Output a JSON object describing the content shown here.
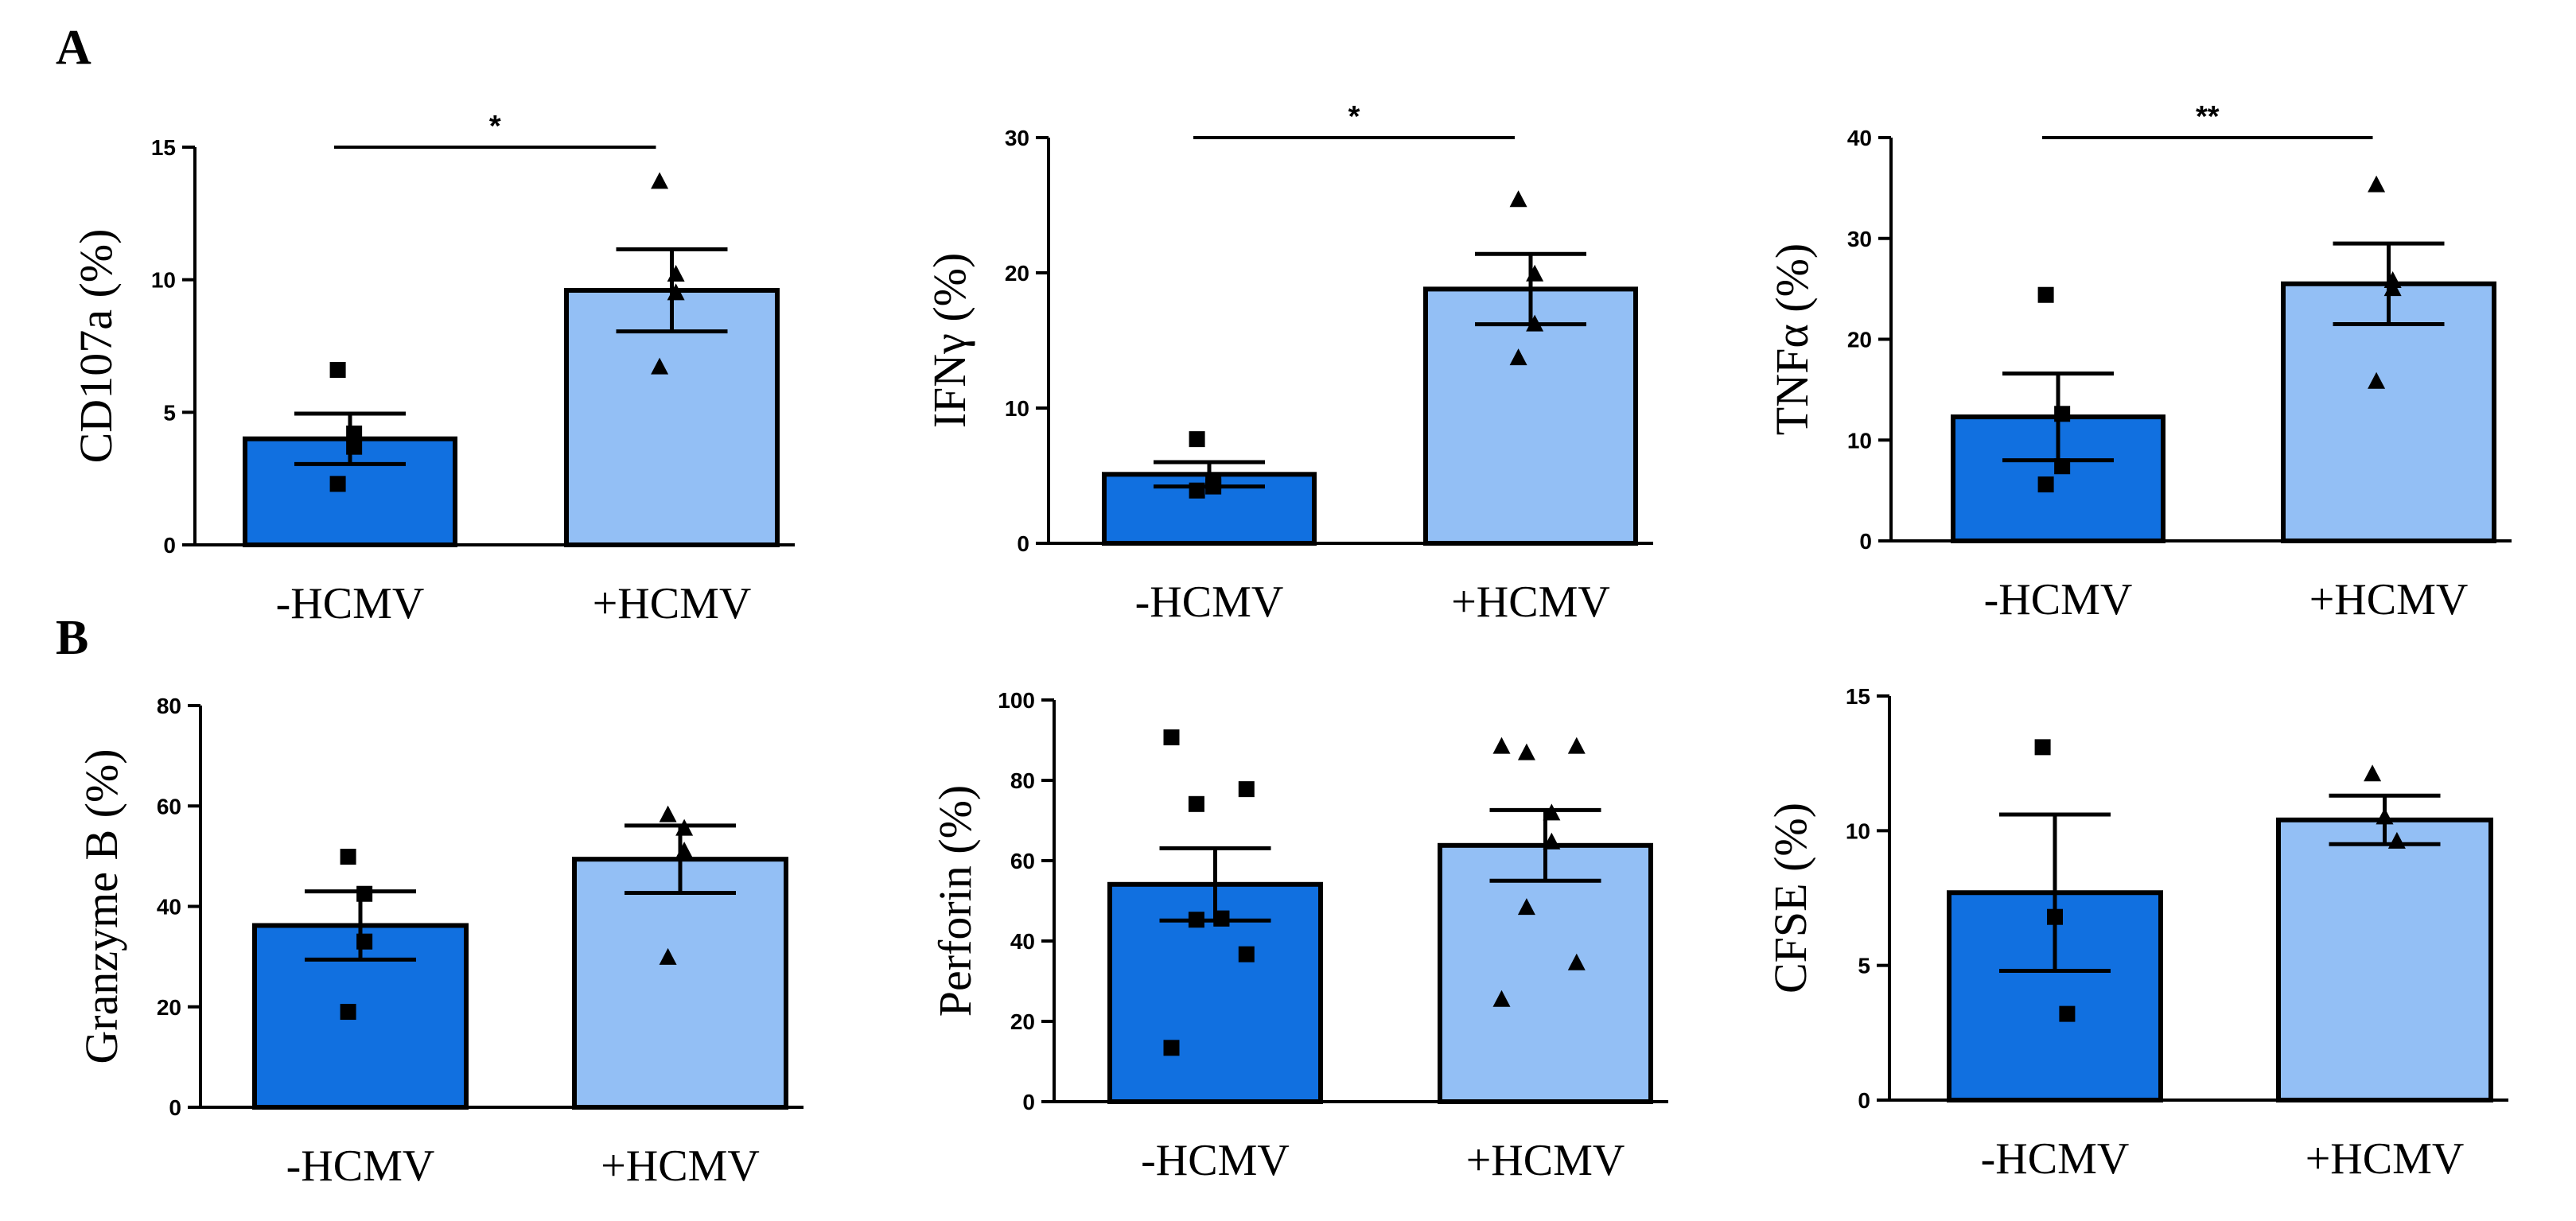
{
  "panels": [
    {
      "letter": "A"
    },
    {
      "letter": "B"
    }
  ],
  "colors": {
    "neg": "#1170E0",
    "pos": "#93BFF5",
    "ink": "#000000"
  },
  "chart_data": [
    {
      "type": "bar",
      "panel": "A",
      "ylabel": "CD107a (%)",
      "ylim": [
        0,
        15
      ],
      "yticks": [
        0,
        5,
        10,
        15
      ],
      "categories": [
        "-HCMV",
        "+HCMV"
      ],
      "values": [
        4.0,
        9.6
      ],
      "sem": [
        0.95,
        1.55
      ],
      "points": [
        [
          6.6,
          4.2,
          3.7,
          2.3
        ],
        [
          13.7,
          10.2,
          9.5,
          6.7
        ]
      ],
      "significance": "*"
    },
    {
      "type": "bar",
      "panel": "A",
      "ylabel": "IFNγ (%)",
      "ylim": [
        0,
        30
      ],
      "yticks": [
        0,
        10,
        20,
        30
      ],
      "categories": [
        "-HCMV",
        "+HCMV"
      ],
      "values": [
        5.1,
        18.8
      ],
      "sem": [
        0.9,
        2.6
      ],
      "points": [
        [
          7.7,
          4.6,
          4.2,
          3.9
        ],
        [
          25.4,
          19.9,
          16.2,
          13.7
        ]
      ],
      "significance": "*"
    },
    {
      "type": "bar",
      "panel": "A",
      "ylabel": "TNFα (%)",
      "ylim": [
        0,
        40
      ],
      "yticks": [
        0,
        10,
        20,
        30,
        40
      ],
      "categories": [
        "-HCMV",
        "+HCMV"
      ],
      "values": [
        12.3,
        25.5
      ],
      "sem": [
        4.3,
        4.0
      ],
      "points": [
        [
          24.4,
          12.6,
          7.4,
          5.6
        ],
        [
          35.3,
          25.8,
          25.0,
          15.8
        ]
      ],
      "significance": "**"
    },
    {
      "type": "bar",
      "panel": "B",
      "ylabel": "Granzyme B (%)",
      "ylim": [
        0,
        80
      ],
      "yticks": [
        0,
        20,
        40,
        60,
        80
      ],
      "categories": [
        "-HCMV",
        "+HCMV"
      ],
      "values": [
        36.2,
        49.4
      ],
      "sem": [
        6.8,
        6.7
      ],
      "points": [
        [
          49.9,
          42.5,
          33.0,
          19.0
        ],
        [
          58.2,
          55.5,
          51.0,
          29.8
        ]
      ],
      "significance": ""
    },
    {
      "type": "bar",
      "panel": "B",
      "ylabel": "Perforin (%)",
      "ylim": [
        0,
        100
      ],
      "yticks": [
        0,
        20,
        40,
        60,
        80,
        100
      ],
      "categories": [
        "-HCMV",
        "+HCMV"
      ],
      "values": [
        54.1,
        63.8
      ],
      "sem": [
        9.0,
        8.8
      ],
      "points": [
        [
          90.7,
          77.8,
          74.1,
          45.6,
          45.6,
          45.3,
          36.7,
          13.4
        ],
        [
          88.4,
          88.4,
          86.8,
          71.8,
          64.6,
          48.3,
          34.5,
          25.4
        ]
      ],
      "significance": ""
    },
    {
      "type": "bar",
      "panel": "B",
      "ylabel": "CFSE (%)",
      "ylim": [
        0,
        15
      ],
      "yticks": [
        0,
        5,
        10,
        15
      ],
      "categories": [
        "-HCMV",
        "+HCMV"
      ],
      "values": [
        7.7,
        10.4
      ],
      "sem": [
        2.9,
        0.9
      ],
      "points": [
        [
          13.1,
          6.8,
          3.2
        ],
        [
          12.1,
          10.5,
          9.6
        ]
      ],
      "significance": ""
    }
  ]
}
